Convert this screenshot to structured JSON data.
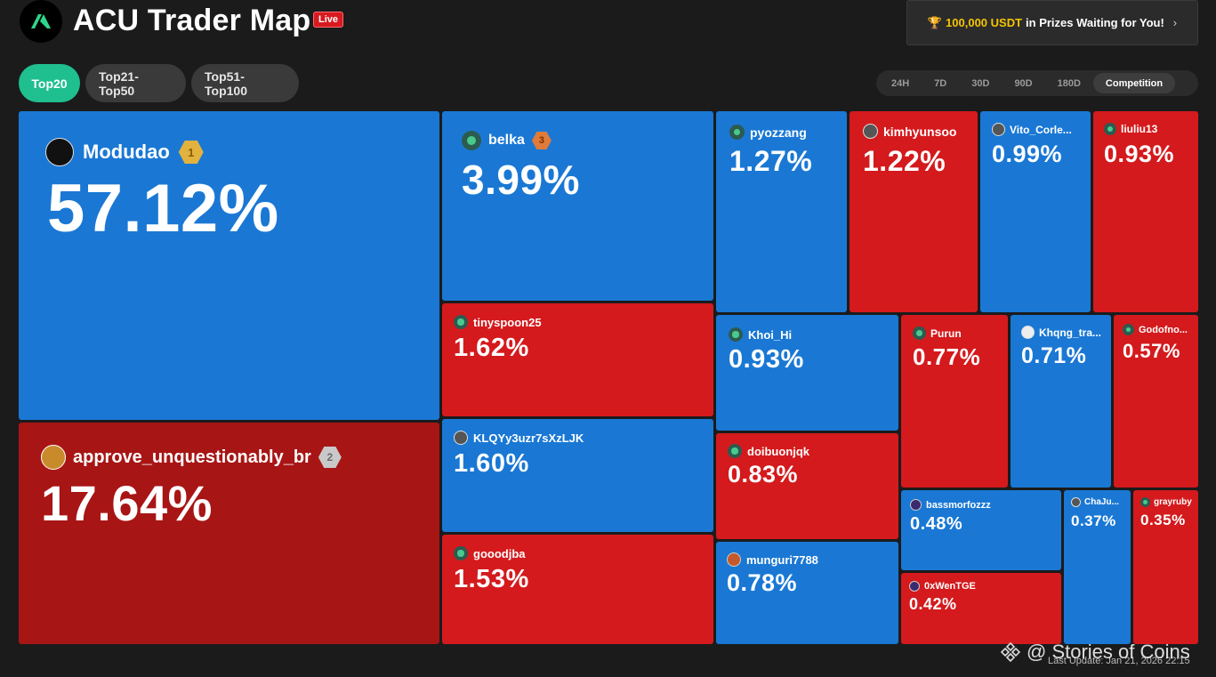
{
  "header": {
    "title": "ACU Trader Map",
    "live": "Live",
    "prize_amount": "100,000 USDT",
    "prize_text": "in Prizes Waiting for You!"
  },
  "tabs": [
    "Top20",
    "Top21-Top50",
    "Top51-Top100"
  ],
  "periods": [
    "24H",
    "7D",
    "30D",
    "90D",
    "180D",
    "Competition"
  ],
  "active_period": "Competition",
  "tiles": [
    {
      "name": "Modudao",
      "pct": "57.12%",
      "rank": "1",
      "color": "blue"
    },
    {
      "name": "approve_unquestionably_br",
      "pct": "17.64%",
      "rank": "2",
      "color": "darkred"
    },
    {
      "name": "belka",
      "pct": "3.99%",
      "rank": "3",
      "color": "blue"
    },
    {
      "name": "tinyspoon25",
      "pct": "1.62%",
      "color": "red"
    },
    {
      "name": "KLQYy3uzr7sXzLJK",
      "pct": "1.60%",
      "color": "blue"
    },
    {
      "name": "gooodjba",
      "pct": "1.53%",
      "color": "red"
    },
    {
      "name": "pyozzang",
      "pct": "1.27%",
      "color": "blue"
    },
    {
      "name": "kimhyunsoo",
      "pct": "1.22%",
      "color": "red"
    },
    {
      "name": "Vito_Corle...",
      "pct": "0.99%",
      "color": "blue"
    },
    {
      "name": "liuliu13",
      "pct": "0.93%",
      "color": "red"
    },
    {
      "name": "Khoi_Hi",
      "pct": "0.93%",
      "color": "blue"
    },
    {
      "name": "Purun",
      "pct": "0.77%",
      "color": "red"
    },
    {
      "name": "Khqng_tra...",
      "pct": "0.71%",
      "color": "blue"
    },
    {
      "name": "Godofno...",
      "pct": "0.57%",
      "color": "red"
    },
    {
      "name": "doibuonjqk",
      "pct": "0.83%",
      "color": "red"
    },
    {
      "name": "munguri7788",
      "pct": "0.78%",
      "color": "blue"
    },
    {
      "name": "bassmorfozzz",
      "pct": "0.48%",
      "color": "blue"
    },
    {
      "name": "ChaJu...",
      "pct": "0.37%",
      "color": "blue"
    },
    {
      "name": "grayruby",
      "pct": "0.35%",
      "color": "red"
    },
    {
      "name": "0xWenTGE",
      "pct": "0.42%",
      "color": "red"
    }
  ],
  "footer": {
    "watermark": "@ Stories of Coins",
    "last_update": "Last Update: Jan 21, 2026 22:15"
  }
}
